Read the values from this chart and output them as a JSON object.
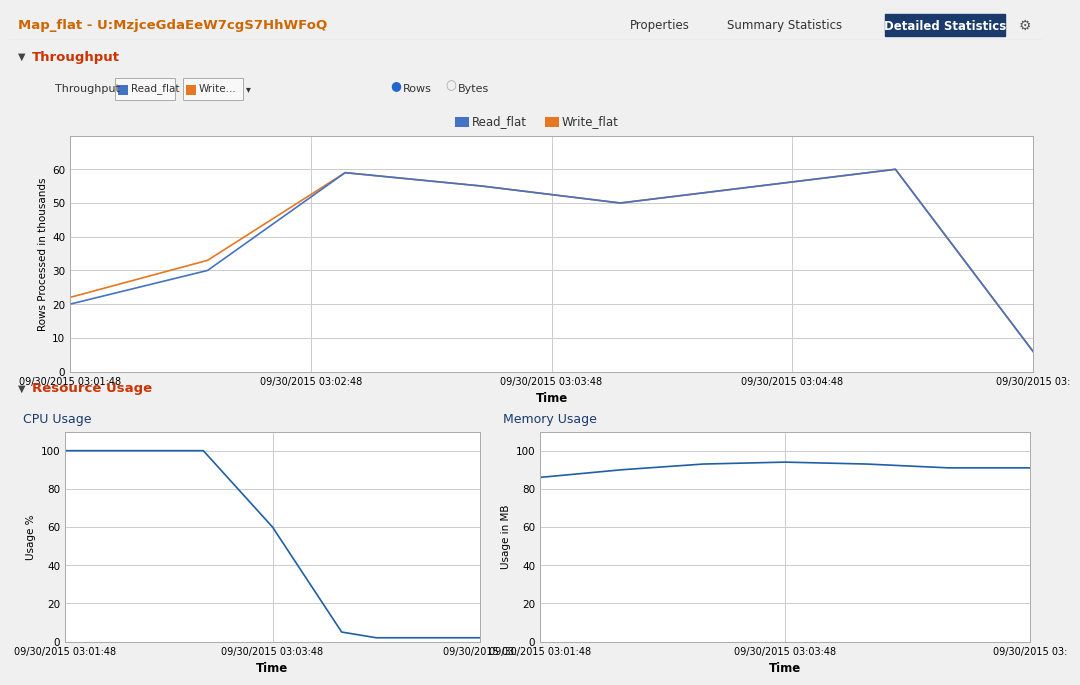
{
  "title": "Map_flat - U:MzjceGdaEeW7cgS7HhWFoQ",
  "nav_items": [
    "Properties",
    "Summary Statistics",
    "Detailed Statistics"
  ],
  "throughput_section": "Throughput",
  "throughput_label": "Throughput",
  "throughput_filters": [
    "Read_flat",
    "Write..."
  ],
  "throughput_radio": [
    "Rows",
    "Bytes"
  ],
  "throughput_legend": [
    "Read_flat",
    "Write_flat"
  ],
  "throughput_legend_colors": [
    "#4472C4",
    "#E87722"
  ],
  "throughput_x": [
    0,
    60,
    120,
    180,
    240,
    300,
    360,
    420
  ],
  "throughput_read": [
    20,
    30,
    59,
    55,
    50,
    55,
    60,
    6
  ],
  "throughput_write": [
    22,
    33,
    59,
    55,
    50,
    55,
    60,
    6
  ],
  "throughput_xlabel": "Time",
  "throughput_ylabel": "Rows Processed in thousands",
  "throughput_ylim": [
    0,
    70
  ],
  "throughput_yticks": [
    0,
    10,
    20,
    30,
    40,
    50,
    60
  ],
  "throughput_xtick_labels": [
    "09/30/2015 03:01:48",
    "09/30/2015 03:02:48",
    "09/30/2015 03:03:48",
    "09/30/2015 03:04:48",
    "09/30/2015 03:"
  ],
  "resource_section": "Resource Usage",
  "cpu_title": "CPU Usage",
  "cpu_x": [
    0,
    120,
    180,
    240,
    270,
    360
  ],
  "cpu_y": [
    100,
    100,
    60,
    5,
    2,
    2
  ],
  "cpu_xlabel": "Time",
  "cpu_ylabel": "Usage %",
  "cpu_ylim": [
    0,
    110
  ],
  "cpu_yticks": [
    0,
    20,
    40,
    60,
    80,
    100
  ],
  "cpu_xtick_labels": [
    "09/30/2015 03:01:48",
    "09/30/2015 03:03:48",
    "09/30/2015 03:"
  ],
  "cpu_line_color": "#1F5FA6",
  "mem_title": "Memory Usage",
  "mem_x": [
    0,
    60,
    120,
    180,
    240,
    300,
    360
  ],
  "mem_y": [
    86,
    90,
    93,
    94,
    93,
    91,
    91
  ],
  "mem_xlabel": "Time",
  "mem_ylabel": "Usage in MB",
  "mem_ylim": [
    0,
    110
  ],
  "mem_yticks": [
    0,
    20,
    40,
    60,
    80,
    100
  ],
  "mem_xtick_labels": [
    "09/30/2015 03:01:48",
    "09/30/2015 03:03:48",
    "09/30/2015 03:"
  ],
  "mem_line_color": "#1F5FA6",
  "bg_outer": "#f0f0f0",
  "bg_white": "#ffffff",
  "bg_section_header": "#d4d4d4",
  "bg_header": "#f5f5f5",
  "grid_color": "#cccccc",
  "border_color": "#aaaaaa",
  "title_color": "#cc6600",
  "section_title_color": "#cc3300",
  "nav_color": "#333333",
  "btn_color": "#1a3a6b",
  "chart_title_color": "#1a3a6b"
}
